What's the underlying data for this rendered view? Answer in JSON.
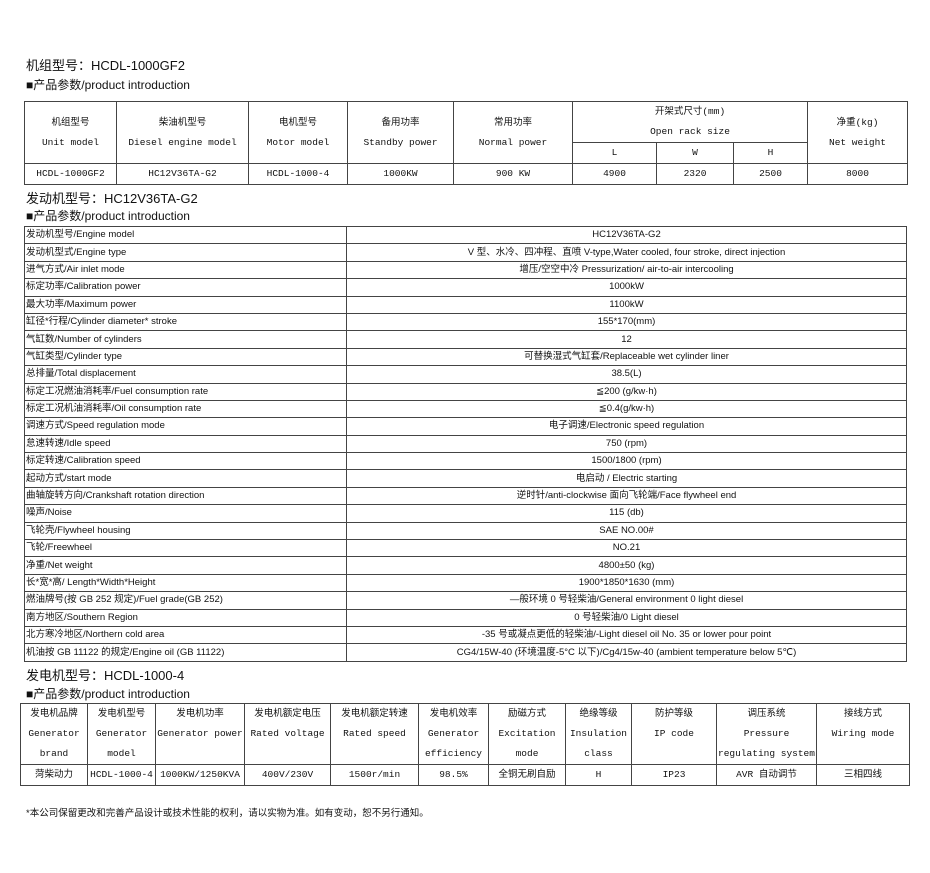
{
  "unit": {
    "title": "机组型号：HCDL-1000GF2",
    "section": "■产品参数/product introduction",
    "headers": [
      [
        "机组型号",
        "Unit model"
      ],
      [
        "柴油机型号",
        "Diesel engine model"
      ],
      [
        "电机型号",
        "Motor model"
      ],
      [
        "备用功率",
        "Standby power"
      ],
      [
        "常用功率",
        "Normal power"
      ],
      [
        "开架式尺寸(mm)",
        "Open rack size"
      ],
      [
        "净重(kg)",
        "Net weight"
      ]
    ],
    "dims": [
      "L",
      "W",
      "H"
    ],
    "row": [
      "HCDL-1000GF2",
      "HC12V36TA-G2",
      "HCDL-1000-4",
      "1000KW",
      "900 KW",
      "4900",
      "2320",
      "2500",
      "8000"
    ]
  },
  "engine": {
    "title": "发动机型号：HC12V36TA-G2",
    "section": "■产品参数/product introduction",
    "rows": [
      [
        "发动机型号/Engine model",
        "HC12V36TA-G2"
      ],
      [
        "发动机型式/Engine type",
        "V 型、水冷、四冲程、直喷  V-type,Water cooled, four stroke, direct injection"
      ],
      [
        "进气方式/Air inlet mode",
        "增压/空空中冷  Pressurization/ air-to-air intercooling"
      ],
      [
        "标定功率/Calibration power",
        "1000kW"
      ],
      [
        "最大功率/Maximum power",
        "1100kW"
      ],
      [
        "缸径*行程/Cylinder diameter* stroke",
        "155*170(mm)"
      ],
      [
        "气缸数/Number of cylinders",
        "12"
      ],
      [
        "气缸类型/Cylinder type",
        "可替换湿式气缸套/Replaceable wet cylinder liner"
      ],
      [
        "总排量/Total displacement",
        "38.5(L)"
      ],
      [
        "标定工况燃油消耗率/Fuel consumption rate",
        "≦200 (g/kw·h)"
      ],
      [
        "标定工况机油消耗率/Oil consumption rate",
        "≦0.4(g/kw·h)"
      ],
      [
        "调速方式/Speed regulation mode",
        "电子调速/Electronic speed regulation"
      ],
      [
        "怠速转速/Idle speed",
        "750 (rpm)"
      ],
      [
        "标定转速/Calibration speed",
        "1500/1800 (rpm)"
      ],
      [
        "起动方式/start mode",
        "电启动  / Electric starting"
      ],
      [
        "曲轴旋转方向/Crankshaft rotation direction",
        "逆时针/anti-clockwise  面向飞轮端/Face flywheel end"
      ],
      [
        "噪声/Noise",
        "115 (db)"
      ],
      [
        "飞轮壳/Flywheel housing",
        "SAE NO.00#"
      ],
      [
        "飞轮/Freewheel",
        "NO.21"
      ],
      [
        "净重/Net weight",
        "4800±50 (kg)"
      ],
      [
        "长*宽*高/ Length*Width*Height",
        "1900*1850*1630 (mm)"
      ],
      [
        "燃油牌号(按 GB 252 规定)/Fuel grade(GB 252)",
        "—般环境 0 号轻柴油/General environment 0 light diesel"
      ],
      [
        "南方地区/Southern Region",
        "0 号轻柴油/0 Light diesel"
      ],
      [
        "北方寒冷地区/Northern cold area",
        "-35 号或凝点更低的轻柴油/-Light diesel oil No. 35 or lower pour point"
      ],
      [
        "机油按 GB 11122 的规定/Engine oil (GB 11122)",
        "CG4/15W-40 (环境温度-5°C 以下)/Cg4/15w-40 (ambient temperature below 5℃)"
      ]
    ]
  },
  "generator": {
    "title": "发电机型号：HCDL-1000-4",
    "section": "■产品参数/product introduction",
    "headers": [
      [
        "发电机品牌",
        "Generator",
        "brand"
      ],
      [
        "发电机型号",
        "Generator",
        "model"
      ],
      [
        "发电机功率",
        "Generator power",
        ""
      ],
      [
        "发电机额定电压",
        "Rated voltage",
        ""
      ],
      [
        "发电机额定转速",
        "Rated speed",
        ""
      ],
      [
        "发电机效率",
        "Generator",
        "efficiency"
      ],
      [
        "励磁方式",
        "Excitation",
        "mode"
      ],
      [
        "绝缘等级",
        "Insulation",
        "class"
      ],
      [
        "防护等级",
        "IP code",
        ""
      ],
      [
        "调压系统",
        "Pressure",
        "regulating system"
      ],
      [
        "接线方式",
        "Wiring mode",
        ""
      ]
    ],
    "row": [
      "菏柴动力",
      "HCDL-1000-4",
      "1000KW/1250KVA",
      "400V/230V",
      "1500r/min",
      "98.5%",
      "全铜无刷自励",
      "H",
      "IP23",
      "AVR 自动调节",
      "三相四线"
    ]
  },
  "footer": "*本公司保留更改和完善产品设计或技术性能的权利，请以实物为准。如有变动，恕不另行通知。"
}
